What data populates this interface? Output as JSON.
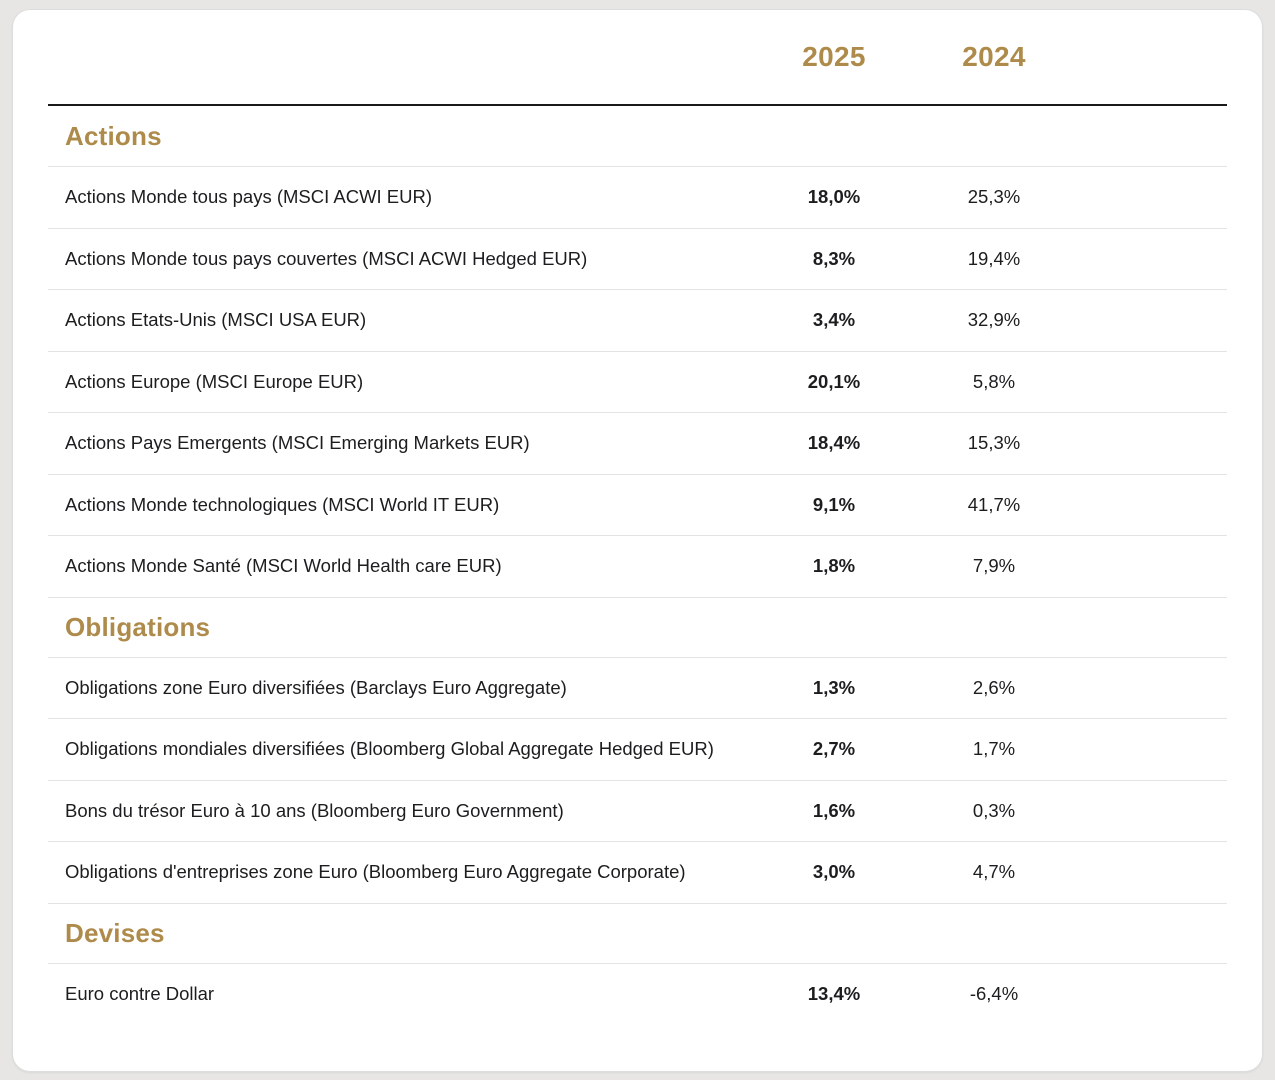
{
  "palette": {
    "gold": "#ae8b4b",
    "text": "#1d1d1f",
    "divider": "#e3e3e2",
    "header_rule": "#1a1a1a",
    "card_bg": "#ffffff",
    "page_bg": "#e7e6e4"
  },
  "chart_data": {
    "type": "table",
    "columns": [
      "2025",
      "2024"
    ],
    "sections": [
      {
        "title": "Actions",
        "rows": [
          {
            "label": "Actions Monde tous pays (MSCI ACWI EUR)",
            "y2025": "18,0%",
            "y2024": "25,3%"
          },
          {
            "label": "Actions Monde tous pays couvertes (MSCI ACWI Hedged EUR)",
            "y2025": "8,3%",
            "y2024": "19,4%"
          },
          {
            "label": "Actions Etats-Unis (MSCI USA EUR)",
            "y2025": "3,4%",
            "y2024": "32,9%"
          },
          {
            "label": "Actions Europe (MSCI Europe EUR)",
            "y2025": "20,1%",
            "y2024": "5,8%"
          },
          {
            "label": "Actions Pays Emergents (MSCI Emerging Markets EUR)",
            "y2025": "18,4%",
            "y2024": "15,3%"
          },
          {
            "label": "Actions Monde technologiques (MSCI World IT EUR)",
            "y2025": "9,1%",
            "y2024": "41,7%"
          },
          {
            "label": "Actions Monde Santé (MSCI World Health care EUR)",
            "y2025": "1,8%",
            "y2024": "7,9%"
          }
        ]
      },
      {
        "title": "Obligations",
        "rows": [
          {
            "label": "Obligations zone Euro diversifiées (Barclays Euro Aggregate)",
            "y2025": "1,3%",
            "y2024": "2,6%"
          },
          {
            "label": "Obligations mondiales diversifiées (Bloomberg Global Aggregate Hedged EUR)",
            "y2025": "2,7%",
            "y2024": "1,7%"
          },
          {
            "label": "Bons du trésor Euro à 10 ans (Bloomberg Euro Government)",
            "y2025": "1,6%",
            "y2024": "0,3%"
          },
          {
            "label": "Obligations d'entreprises zone Euro (Bloomberg Euro Aggregate Corporate)",
            "y2025": "3,0%",
            "y2024": "4,7%"
          }
        ]
      },
      {
        "title": "Devises",
        "rows": [
          {
            "label": "Euro contre Dollar",
            "y2025": "13,4%",
            "y2024": "-6,4%"
          }
        ]
      }
    ]
  }
}
